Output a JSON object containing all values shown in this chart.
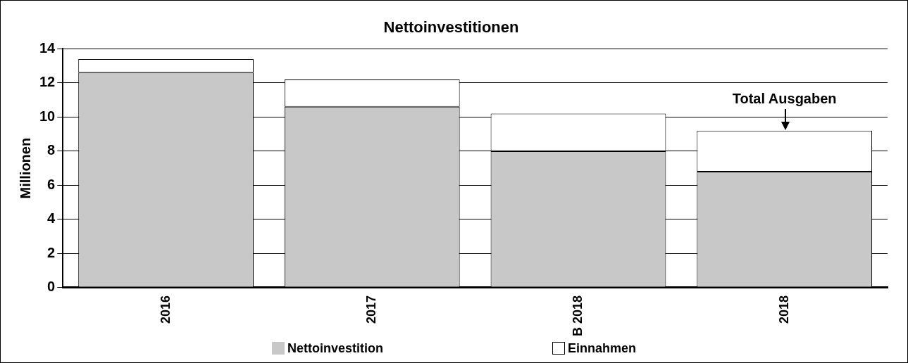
{
  "chart_data": {
    "type": "bar",
    "title": "Nettoinvestitionen",
    "ylabel": "Millionen",
    "categories": [
      "2016",
      "2017",
      "B 2018",
      "2018"
    ],
    "series": [
      {
        "name": "Nettoinvestition",
        "color": "#c8c8c8",
        "values": [
          12.6,
          10.6,
          8.0,
          6.8
        ]
      },
      {
        "name": "Einnahmen",
        "color": "#ffffff",
        "values": [
          0.8,
          1.6,
          2.2,
          2.4
        ]
      }
    ],
    "stacked": true,
    "ylim": [
      0,
      14
    ],
    "yticks": [
      0,
      2,
      4,
      6,
      8,
      10,
      12,
      14
    ],
    "grid": "y",
    "legend": "bottom",
    "annotations": [
      {
        "text": "Total Ausgaben",
        "x": "2018",
        "y": 9.2
      }
    ]
  }
}
